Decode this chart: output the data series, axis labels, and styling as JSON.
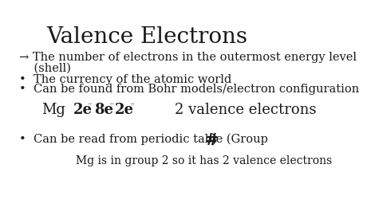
{
  "title": "Valence Electrons",
  "background_color": "#ffffff",
  "text_color": "#1a1a1a",
  "title_fontsize": 20,
  "body_fontsize": 10.5,
  "mg_fontsize": 13,
  "mg_super_fontsize": 8,
  "note_fontsize": 10,
  "line1a": "→ The number of electrons in the outermost energy level",
  "line1b": "    (shell)",
  "line2": "•  The currency of the atomic world",
  "line3": "•  Can be found from Bohr models/electron configuration",
  "mg_label": "Mg",
  "mg_e1": "2e",
  "mg_e2": "8e",
  "mg_e3": "2e",
  "mg_sup": "⁻",
  "mg_valence": "2 valence electrons",
  "line4": "•  Can be read from periodic table (Group #)",
  "line4_hash_big": "#",
  "line5": "Mg is in group 2 so it has 2 valence electrons"
}
